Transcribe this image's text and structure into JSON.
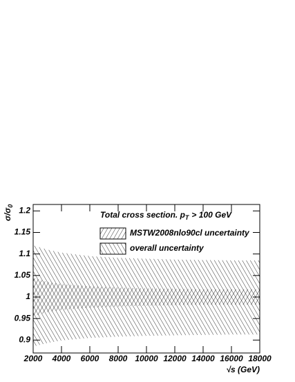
{
  "chart_data": {
    "type": "band",
    "title_parts": [
      "Total cross section. p",
      "T",
      "> 100 GeV"
    ],
    "ylabel_parts": [
      "σ/σ",
      "0"
    ],
    "xlabel": "√s (GeV)",
    "x": [
      2000,
      3000,
      4000,
      6000,
      8000,
      10000,
      12000,
      14000,
      16000,
      18000
    ],
    "series": [
      {
        "name": "MSTW2008nlo90cl uncertainty",
        "color": "#000000",
        "hatch": "/",
        "upper": [
          1.045,
          1.035,
          1.03,
          1.025,
          1.022,
          1.02,
          1.019,
          1.018,
          1.018,
          1.018
        ],
        "lower": [
          0.955,
          0.965,
          0.97,
          0.975,
          0.978,
          0.98,
          0.981,
          0.982,
          0.982,
          0.982
        ]
      },
      {
        "name": "overall uncertainty",
        "color": "#000000",
        "hatch": "\\",
        "upper": [
          1.12,
          1.11,
          1.103,
          1.095,
          1.091,
          1.089,
          1.087,
          1.086,
          1.085,
          1.085
        ],
        "lower": [
          0.885,
          0.893,
          0.899,
          0.905,
          0.908,
          0.91,
          0.911,
          0.912,
          0.913,
          0.913
        ]
      }
    ],
    "xlim": [
      2000,
      18000
    ],
    "xticks": [
      2000,
      4000,
      6000,
      8000,
      10000,
      12000,
      14000,
      16000,
      18000
    ],
    "ylim": [
      0.87,
      1.215
    ],
    "yticks": [
      0.9,
      0.95,
      1,
      1.05,
      1.1,
      1.15,
      1.2
    ]
  }
}
